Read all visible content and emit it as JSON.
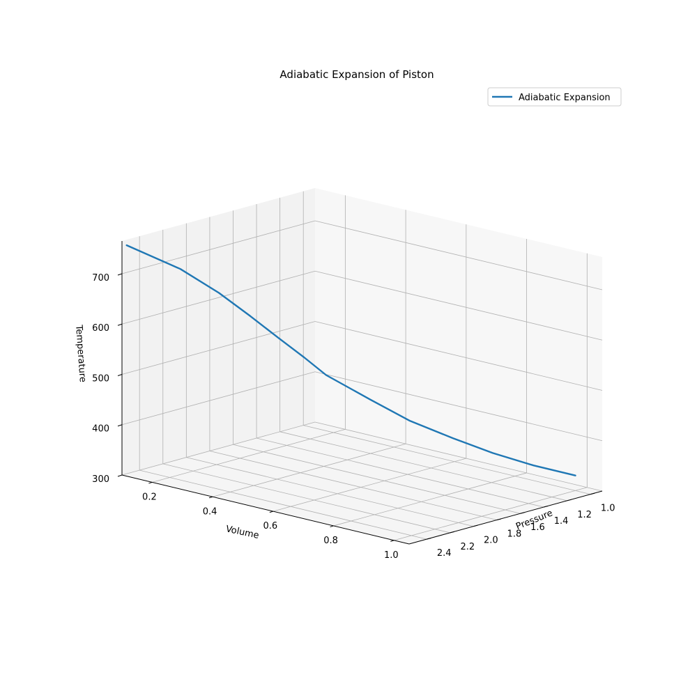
{
  "chart_data": {
    "type": "line",
    "projection": "3d",
    "title": "Adiabatic Expansion of Piston",
    "xlabel": "Volume",
    "ylabel": "Pressure",
    "zlabel": "Temperature",
    "xlim": [
      0.1,
      1.05
    ],
    "ylim": [
      0.9,
      2.55
    ],
    "zlim": [
      300,
      765
    ],
    "xticks": [
      "0.2",
      "0.4",
      "0.6",
      "0.8",
      "1.0"
    ],
    "yticks": [
      "1.0",
      "1.2",
      "1.4",
      "1.6",
      "1.8",
      "2.0",
      "2.2",
      "2.4"
    ],
    "zticks": [
      "300",
      "400",
      "500",
      "600",
      "700"
    ],
    "grid": true,
    "legend": {
      "location": "upper right",
      "entries": [
        "Adiabatic Expansion"
      ]
    },
    "series": [
      {
        "name": "Adiabatic Expansion",
        "color": "#1f77b4",
        "points": [
          {
            "x": 0.1,
            "y": 2.51,
            "z": 754
          },
          {
            "x": 0.15,
            "y": 2.18,
            "z": 693
          },
          {
            "x": 0.2,
            "y": 1.98,
            "z": 640
          },
          {
            "x": 0.25,
            "y": 1.84,
            "z": 592
          },
          {
            "x": 0.3,
            "y": 1.73,
            "z": 549
          },
          {
            "x": 0.35,
            "y": 1.64,
            "z": 512
          },
          {
            "x": 0.4,
            "y": 1.58,
            "z": 480
          },
          {
            "x": 0.5,
            "y": 1.46,
            "z": 438
          },
          {
            "x": 0.6,
            "y": 1.38,
            "z": 405
          },
          {
            "x": 0.7,
            "y": 1.27,
            "z": 378
          },
          {
            "x": 0.8,
            "y": 1.19,
            "z": 358
          },
          {
            "x": 0.9,
            "y": 1.1,
            "z": 342
          },
          {
            "x": 1.0,
            "y": 1.0,
            "z": 330
          }
        ]
      }
    ]
  },
  "colors": {
    "line": "#1f77b4",
    "grid": "#b0b0b0",
    "pane_left": "#f2f2f2",
    "pane_back": "#f7f7f7",
    "pane_floor": "#f5f5f5"
  }
}
